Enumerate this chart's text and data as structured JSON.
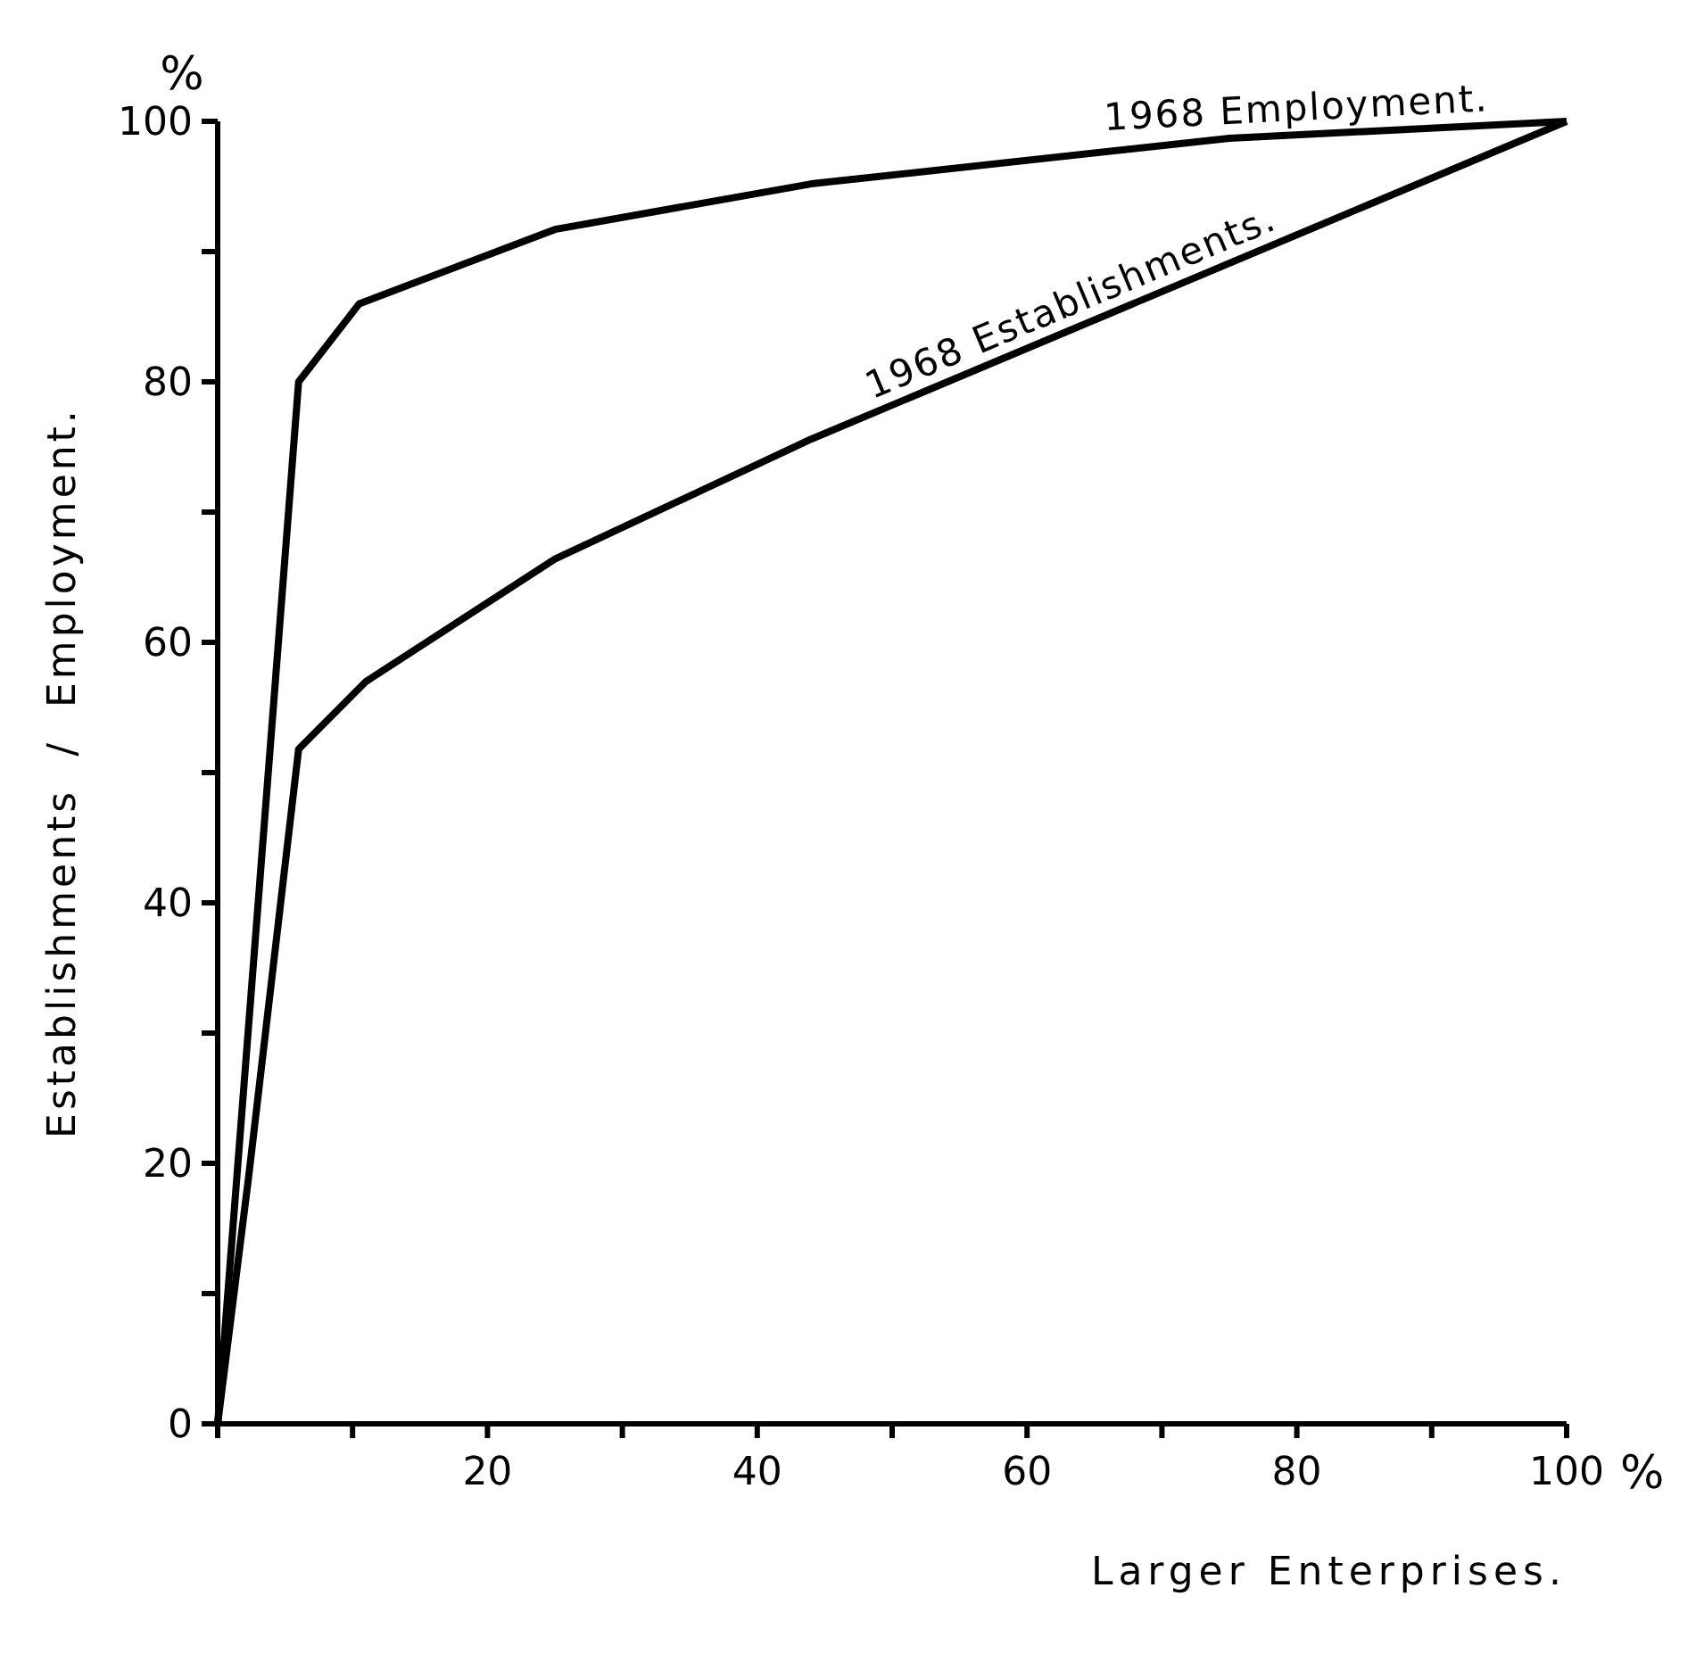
{
  "chart_data": {
    "type": "line",
    "xlabel": "Larger Enterprises.",
    "ylabel": "Establishments  /  Employment.",
    "xlim": [
      0,
      100
    ],
    "ylim": [
      0,
      100
    ],
    "xticks": [
      {
        "value": 0,
        "label": null
      },
      {
        "value": 10,
        "label": null
      },
      20,
      {
        "value": 30,
        "label": null
      },
      40,
      {
        "value": 50,
        "label": null
      },
      60,
      {
        "value": 70,
        "label": null
      },
      80,
      {
        "value": 90,
        "label": null
      },
      100
    ],
    "yticks": [
      0,
      {
        "value": 10,
        "label": null
      },
      20,
      {
        "value": 30,
        "label": null
      },
      40,
      {
        "value": 50,
        "label": null
      },
      60,
      {
        "value": 70,
        "label": null
      },
      80,
      {
        "value": 90,
        "label": null
      },
      100
    ],
    "annotations": [
      "%",
      "%"
    ],
    "grid": false,
    "legend": false,
    "marker": "none",
    "line_style": "solid",
    "series": [
      {
        "name": "1968 Employment.",
        "color": "#000000",
        "x": [
          0,
          6,
          10.5,
          25,
          44,
          75,
          100
        ],
        "values": [
          0,
          80,
          86,
          91.7,
          95.2,
          98.7,
          100
        ]
      },
      {
        "name": "1968 Establishments.",
        "color": "#000000",
        "x": [
          0,
          2.3,
          6,
          11,
          25,
          44,
          100
        ],
        "values": [
          0,
          19,
          51.8,
          57,
          66.4,
          75.6,
          100
        ]
      }
    ]
  }
}
